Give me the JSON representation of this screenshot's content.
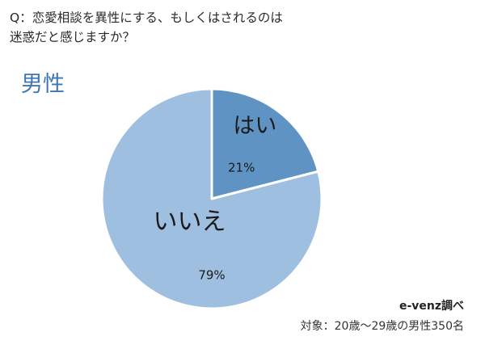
{
  "question": {
    "line1": "Q：恋愛相談を異性にする、もしくはされるのは",
    "line2": "迷惑だと感じますか？"
  },
  "group_label": "男性",
  "chart_data": {
    "type": "pie",
    "title": "",
    "slices": [
      {
        "label": "はい",
        "value": 21,
        "value_text": "21%",
        "color": "#5f93c3"
      },
      {
        "label": "いいえ",
        "value": 79,
        "value_text": "79%",
        "color": "#9ebfe0"
      }
    ],
    "start_angle_deg": 0,
    "direction": "clockwise"
  },
  "footer": {
    "source": "e-venz調べ",
    "subject": "対象：20歳～29歳の男性350名"
  }
}
